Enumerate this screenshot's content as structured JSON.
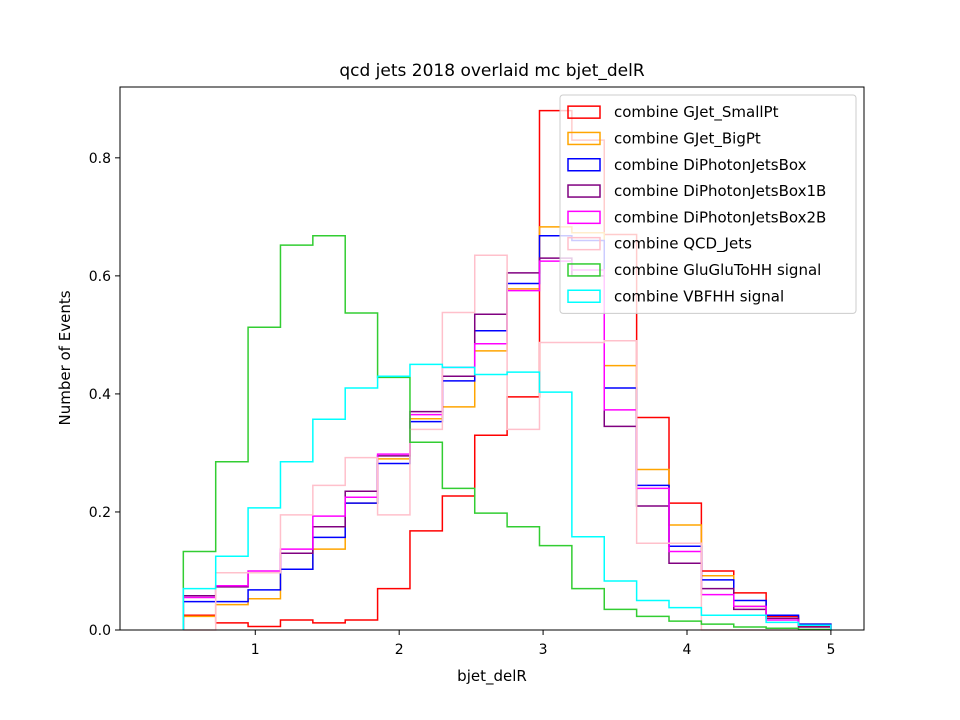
{
  "chart_data": {
    "type": "histogram",
    "title": "qcd jets 2018 overlaid mc bjet_delR",
    "xlabel": "bjet_delR",
    "ylabel": "Number of Events",
    "xlim": [
      0.06,
      5.23
    ],
    "ylim": [
      0,
      0.92
    ],
    "x_ticks": [
      1,
      2,
      3,
      4,
      5
    ],
    "x_tick_labels": [
      "1",
      "2",
      "3",
      "4",
      "5"
    ],
    "y_ticks": [
      0.0,
      0.2,
      0.4,
      0.6,
      0.8
    ],
    "y_tick_labels": [
      "0.0",
      "0.2",
      "0.4",
      "0.6",
      "0.8"
    ],
    "bin_edges": [
      0.5,
      0.725,
      0.95,
      1.175,
      1.4,
      1.625,
      1.85,
      2.075,
      2.3,
      2.525,
      2.75,
      2.975,
      3.2,
      3.425,
      3.65,
      3.875,
      4.1,
      4.325,
      4.55,
      4.775,
      5.0
    ],
    "grid": false,
    "legend_position": "upper right",
    "series": [
      {
        "name": "combine GJet_SmallPt",
        "color": "#ff0000",
        "values": [
          0.025,
          0.012,
          0.006,
          0.017,
          0.012,
          0.017,
          0.07,
          0.168,
          0.227,
          0.33,
          0.395,
          0.88,
          0.83,
          0.67,
          0.36,
          0.215,
          0.1,
          0.063,
          0.023,
          0.007
        ]
      },
      {
        "name": "combine GJet_BigPt",
        "color": "#ffa500",
        "values": [
          0.023,
          0.043,
          0.053,
          0.103,
          0.137,
          0.215,
          0.29,
          0.358,
          0.378,
          0.473,
          0.578,
          0.683,
          0.673,
          0.448,
          0.272,
          0.178,
          0.092,
          0.04,
          0.02,
          0.01
        ]
      },
      {
        "name": "combine DiPhotonJetsBox",
        "color": "#0000ff",
        "values": [
          0.048,
          0.048,
          0.068,
          0.103,
          0.157,
          0.215,
          0.282,
          0.353,
          0.422,
          0.507,
          0.587,
          0.668,
          0.66,
          0.41,
          0.245,
          0.142,
          0.085,
          0.05,
          0.025,
          0.01
        ]
      },
      {
        "name": "combine DiPhotonJetsBox1B",
        "color": "#800080",
        "values": [
          0.058,
          0.073,
          0.097,
          0.13,
          0.175,
          0.235,
          0.295,
          0.37,
          0.43,
          0.535,
          0.605,
          0.63,
          0.6,
          0.345,
          0.21,
          0.113,
          0.07,
          0.035,
          0.02,
          0.005
        ]
      },
      {
        "name": "combine DiPhotonJetsBox2B",
        "color": "#ff00ff",
        "values": [
          0.055,
          0.075,
          0.1,
          0.137,
          0.193,
          0.225,
          0.298,
          0.365,
          0.445,
          0.485,
          0.575,
          0.625,
          0.61,
          0.373,
          0.24,
          0.133,
          0.06,
          0.04,
          0.017,
          0.008
        ]
      },
      {
        "name": "combine QCD_Jets",
        "color": "#ffc0cb",
        "values": [
          0.0,
          0.097,
          0.097,
          0.195,
          0.245,
          0.292,
          0.195,
          0.34,
          0.538,
          0.635,
          0.34,
          0.487,
          0.487,
          0.49,
          0.147,
          0.147,
          0.0,
          0.0,
          0.0,
          0.0
        ]
      },
      {
        "name": "combine GluGluToHH signal",
        "color": "#32cd32",
        "values": [
          0.133,
          0.285,
          0.513,
          0.652,
          0.668,
          0.537,
          0.428,
          0.318,
          0.24,
          0.198,
          0.175,
          0.143,
          0.07,
          0.035,
          0.023,
          0.015,
          0.01,
          0.005,
          0.003,
          0.001
        ]
      },
      {
        "name": "combine VBFHH signal",
        "color": "#00ffff",
        "values": [
          0.07,
          0.125,
          0.207,
          0.285,
          0.357,
          0.41,
          0.43,
          0.45,
          0.445,
          0.433,
          0.437,
          0.403,
          0.158,
          0.083,
          0.05,
          0.038,
          0.025,
          0.025,
          0.013,
          0.008
        ]
      }
    ]
  }
}
